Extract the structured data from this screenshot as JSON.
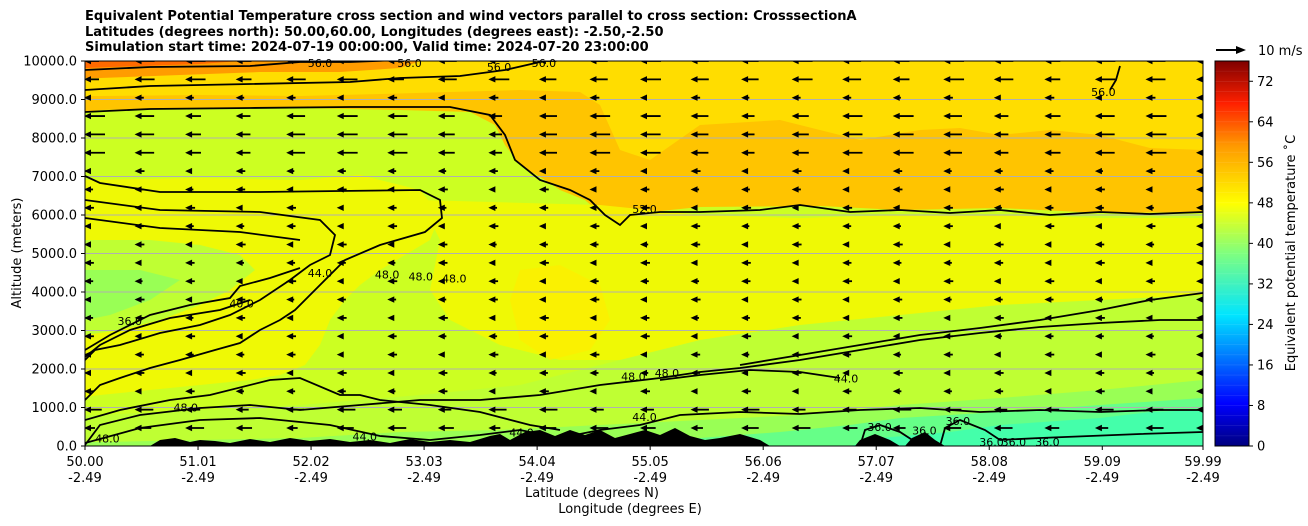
{
  "title": {
    "line1": "Equivalent Potential Temperature cross section and wind vectors parallel to cross section: CrosssectionA",
    "line2": "Latitudes (degrees north): 50.00,60.00, Longitudes (degrees east): -2.50,-2.50",
    "line3": "Simulation start time: 2024-07-19 00:00:00, Valid time: 2024-07-20 23:00:00"
  },
  "chart_data": {
    "type": "heatmap",
    "subtype": "filled-contour cross section with wind vectors",
    "xlabel": "Latitude (degrees N)",
    "xlabel2": "Longitude (degrees E)",
    "ylabel": "Altitude (meters)",
    "xlim": [
      50.0,
      59.99
    ],
    "ylim": [
      0,
      10000
    ],
    "x_ticks": [
      {
        "lat": "50.00",
        "lon": "-2.49",
        "v": 50.0
      },
      {
        "lat": "51.01",
        "lon": "-2.49",
        "v": 51.01
      },
      {
        "lat": "52.02",
        "lon": "-2.49",
        "v": 52.02
      },
      {
        "lat": "53.03",
        "lon": "-2.49",
        "v": 53.03
      },
      {
        "lat": "54.04",
        "lon": "-2.49",
        "v": 54.04
      },
      {
        "lat": "55.05",
        "lon": "-2.49",
        "v": 55.05
      },
      {
        "lat": "56.06",
        "lon": "-2.49",
        "v": 56.06
      },
      {
        "lat": "57.07",
        "lon": "-2.49",
        "v": 57.07
      },
      {
        "lat": "58.08",
        "lon": "-2.49",
        "v": 58.08
      },
      {
        "lat": "59.09",
        "lon": "-2.49",
        "v": 59.09
      },
      {
        "lat": "59.99",
        "lon": "-2.49",
        "v": 59.99
      }
    ],
    "y_ticks": [
      "0.0",
      "1000.0",
      "2000.0",
      "3000.0",
      "4000.0",
      "5000.0",
      "6000.0",
      "7000.0",
      "8000.0",
      "9000.0",
      "10000.0"
    ],
    "colorbar": {
      "label": "Equivalent potential temperature ˚C",
      "range": [
        0,
        76
      ],
      "ticks": [
        "0",
        "8",
        "16",
        "24",
        "32",
        "40",
        "48",
        "56",
        "64",
        "72"
      ]
    },
    "vector_key": "10 m/s",
    "grid": "horizontal",
    "contour_labels": [
      {
        "text": "56.0",
        "lat": 52.1,
        "alt": 9950
      },
      {
        "text": "56.0",
        "lat": 52.9,
        "alt": 9950
      },
      {
        "text": "56.0",
        "lat": 53.7,
        "alt": 9850
      },
      {
        "text": "56.0",
        "lat": 54.1,
        "alt": 9950
      },
      {
        "text": "56.0",
        "lat": 59.1,
        "alt": 9200
      },
      {
        "text": "52.0",
        "lat": 55.0,
        "alt": 6150
      },
      {
        "text": "48.0",
        "lat": 52.7,
        "alt": 4450
      },
      {
        "text": "48.0",
        "lat": 53.0,
        "alt": 4400
      },
      {
        "text": "48.0",
        "lat": 53.3,
        "alt": 4350
      },
      {
        "text": "48.0",
        "lat": 54.9,
        "alt": 1800
      },
      {
        "text": "48.0",
        "lat": 55.2,
        "alt": 1900
      },
      {
        "text": "48.0",
        "lat": 50.9,
        "alt": 1000
      },
      {
        "text": "48.0",
        "lat": 50.2,
        "alt": 200
      },
      {
        "text": "44.0",
        "lat": 52.1,
        "alt": 4500
      },
      {
        "text": "44.0",
        "lat": 56.8,
        "alt": 1750
      },
      {
        "text": "44.0",
        "lat": 55.0,
        "alt": 750
      },
      {
        "text": "44.0",
        "lat": 52.5,
        "alt": 250
      },
      {
        "text": "44.0",
        "lat": 53.9,
        "alt": 350
      },
      {
        "text": "40.0",
        "lat": 51.4,
        "alt": 3700
      },
      {
        "text": "36.0",
        "lat": 50.4,
        "alt": 3250
      },
      {
        "text": "36.0",
        "lat": 57.1,
        "alt": 500
      },
      {
        "text": "36.0",
        "lat": 57.5,
        "alt": 400
      },
      {
        "text": "36.0",
        "lat": 57.8,
        "alt": 650
      },
      {
        "text": "36.0",
        "lat": 58.1,
        "alt": 100
      },
      {
        "text": "36.0",
        "lat": 58.3,
        "alt": 100
      },
      {
        "text": "36.0",
        "lat": 58.6,
        "alt": 100
      }
    ],
    "wind": "mostly negative (toward decreasing latitude); strongest near 10000 m and 8000-8500 m"
  }
}
